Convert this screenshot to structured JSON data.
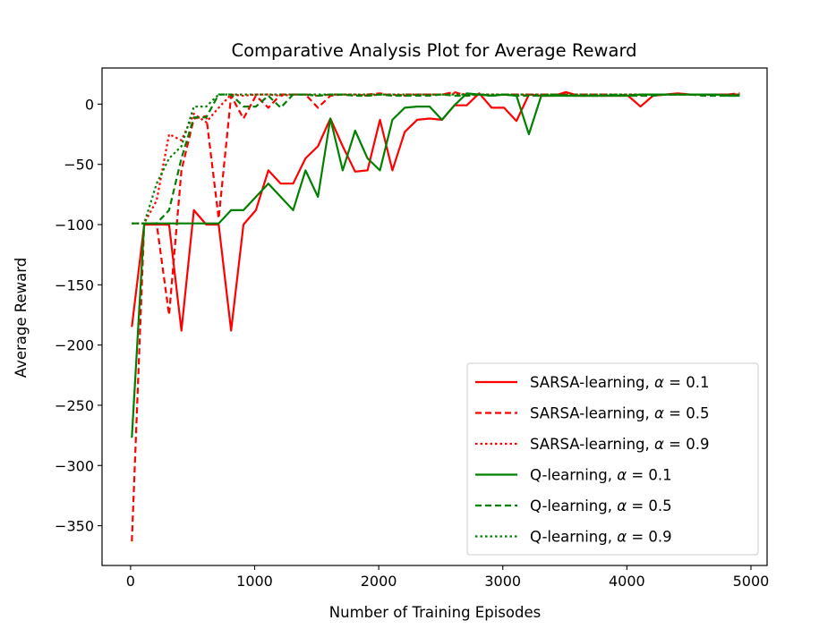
{
  "chart_data": {
    "type": "line",
    "title": "Comparative Analysis Plot for Average Reward",
    "xlabel": "Number of Training Episodes",
    "ylabel": "Average Reward",
    "xlim": [
      -230,
      5130
    ],
    "ylim": [
      -383,
      30
    ],
    "xticks": [
      0,
      1000,
      2000,
      3000,
      4000,
      5000
    ],
    "xtick_labels": [
      "0",
      "1000",
      "2000",
      "3000",
      "4000",
      "5000"
    ],
    "yticks": [
      0,
      -50,
      -100,
      -150,
      -200,
      -250,
      -300,
      -350
    ],
    "ytick_labels": [
      "0",
      "−50",
      "−100",
      "−150",
      "−200",
      "−250",
      "−300",
      "−350"
    ],
    "grid": false,
    "legend_position": "lower-right",
    "x": [
      10,
      110,
      210,
      310,
      410,
      510,
      610,
      710,
      810,
      910,
      1010,
      1110,
      1210,
      1310,
      1410,
      1510,
      1610,
      1710,
      1810,
      1910,
      2010,
      2110,
      2210,
      2310,
      2410,
      2510,
      2610,
      2710,
      2810,
      2910,
      3010,
      3110,
      3210,
      3310,
      3410,
      3510,
      3610,
      3710,
      3810,
      3910,
      4010,
      4110,
      4210,
      4310,
      4410,
      4510,
      4610,
      4710,
      4810,
      4910
    ],
    "series": [
      {
        "name": "SARSA-learning, α = 0.1",
        "label_main": "SARSA-learning, ",
        "label_value": "0.1",
        "color": "#ff0000",
        "dash": "solid",
        "values": [
          -185,
          -100,
          -100,
          -100,
          -188,
          -88,
          -100,
          -100,
          -188,
          -100,
          -88,
          -55,
          -66,
          -66,
          -45,
          -35,
          -12,
          -35,
          -56,
          -55,
          -13,
          -55,
          -23,
          -13,
          -12,
          -13,
          -1,
          -1,
          9,
          -3,
          -3,
          -14,
          8,
          7,
          7,
          10,
          7,
          7,
          7,
          7,
          7,
          -2,
          7,
          8,
          9,
          8,
          8,
          8,
          8,
          8
        ]
      },
      {
        "name": "SARSA-learning, α = 0.5",
        "label_main": "SARSA-learning, ",
        "label_value": "0.5",
        "color": "#ff0000",
        "dash": "dashed",
        "values": [
          -363,
          -100,
          -99,
          -175,
          -55,
          -12,
          -10,
          -95,
          7,
          -12,
          7,
          -3,
          8,
          8,
          8,
          -3,
          7,
          8,
          7,
          8,
          9,
          7,
          8,
          8,
          8,
          8,
          10,
          7,
          8,
          7,
          8,
          8,
          7,
          8,
          8,
          8,
          8,
          8,
          8,
          7,
          8,
          7,
          8,
          8,
          8,
          8,
          8,
          8,
          8,
          9
        ]
      },
      {
        "name": "SARSA-learning, α = 0.9",
        "label_main": "SARSA-learning, ",
        "label_value": "0.9",
        "color": "#ff0000",
        "dash": "dotted",
        "values": [
          -99,
          -99,
          -80,
          -25,
          -30,
          -8,
          -15,
          -3,
          8,
          7,
          8,
          8,
          7,
          8,
          8,
          7,
          8,
          8,
          8,
          7,
          8,
          8,
          7,
          8,
          8,
          8,
          9,
          8,
          8,
          8,
          8,
          8,
          8,
          8,
          8,
          8,
          8,
          8,
          8,
          8,
          8,
          8,
          8,
          8,
          8,
          8,
          8,
          8,
          8,
          8
        ]
      },
      {
        "name": "Q-learning, α = 0.1",
        "label_main": "Q-learning, ",
        "label_value": "0.1",
        "color": "#008000",
        "dash": "solid",
        "values": [
          -277,
          -99,
          -99,
          -99,
          -99,
          -99,
          -99,
          -99,
          -88,
          -88,
          -77,
          -66,
          -77,
          -88,
          -55,
          -77,
          -12,
          -55,
          -22,
          -45,
          -55,
          -13,
          -3,
          -2,
          -2,
          -13,
          -1,
          9,
          8,
          7,
          8,
          7,
          -25,
          7,
          7,
          7,
          7,
          7,
          7,
          7,
          7,
          8,
          8,
          8,
          8,
          8,
          8,
          8,
          7,
          7
        ]
      },
      {
        "name": "Q-learning, α = 0.5",
        "label_main": "Q-learning, ",
        "label_value": "0.5",
        "color": "#008000",
        "dash": "dashed",
        "values": [
          -99,
          -99,
          -99,
          -88,
          -45,
          -11,
          -11,
          8,
          8,
          -2,
          -2,
          7,
          -3,
          8,
          8,
          7,
          8,
          8,
          7,
          7,
          8,
          7,
          7,
          7,
          7,
          8,
          7,
          7,
          8,
          7,
          8,
          7,
          7,
          7,
          8,
          7,
          7,
          7,
          7,
          8,
          7,
          7,
          7,
          8,
          8,
          8,
          7,
          7,
          7,
          7
        ]
      },
      {
        "name": "Q-learning, α = 0.9",
        "label_main": "Q-learning, ",
        "label_value": "0.9",
        "color": "#008000",
        "dash": "dotted",
        "values": [
          -99,
          -99,
          -66,
          -45,
          -35,
          -2,
          -2,
          8,
          8,
          8,
          8,
          8,
          8,
          8,
          8,
          8,
          8,
          8,
          8,
          8,
          8,
          8,
          8,
          8,
          8,
          8,
          8,
          8,
          8,
          8,
          8,
          8,
          8,
          8,
          8,
          8,
          8,
          8,
          8,
          8,
          8,
          8,
          8,
          8,
          8,
          8,
          8,
          8,
          8,
          8
        ]
      }
    ]
  }
}
